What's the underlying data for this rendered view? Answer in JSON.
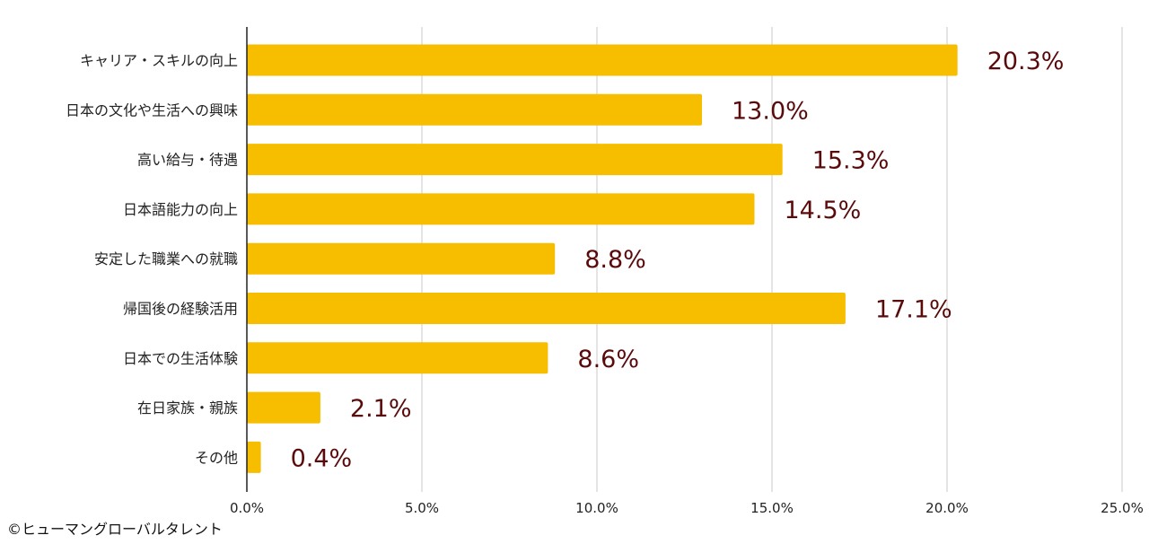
{
  "chart_data": {
    "type": "bar",
    "orientation": "horizontal",
    "categories": [
      "キャリア・スキルの向上",
      "日本の文化や生活への興味",
      "高い給与・待遇",
      "日本語能力の向上",
      "安定した職業への就職",
      "帰国後の経験活用",
      "日本での生活体験",
      "在日家族・親族",
      "その他"
    ],
    "values": [
      20.3,
      13.0,
      15.3,
      14.5,
      8.8,
      17.1,
      8.6,
      2.1,
      0.4
    ],
    "value_labels": [
      "20.3%",
      "13.0%",
      "15.3%",
      "14.5%",
      "8.8%",
      "17.1%",
      "8.6%",
      "2.1%",
      "0.4%"
    ],
    "xlim": [
      0,
      25
    ],
    "xticks": [
      0,
      5,
      10,
      15,
      20,
      25
    ],
    "xtick_labels": [
      "0.0%",
      "5.0%",
      "10.0%",
      "15.0%",
      "20.0%",
      "25.0%"
    ],
    "grid": "vertical",
    "bar_color": "#F7BE00",
    "label_color": "#5A0A0A",
    "grid_color": "#C8C8C8"
  },
  "credit": "©ヒューマングローバルタレント"
}
